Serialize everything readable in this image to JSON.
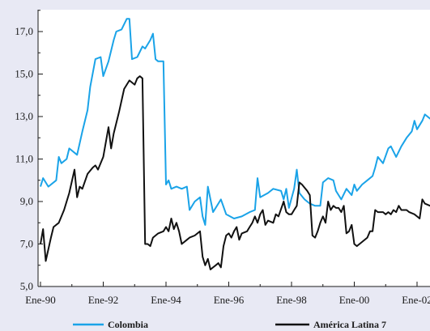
{
  "chart_data": {
    "type": "line",
    "title": "",
    "xlabel": "",
    "ylabel": "",
    "ylim": [
      5.0,
      18.5
    ],
    "xlim": [
      "1990-01",
      "2002-10"
    ],
    "y_ticks": [
      "5,0",
      "7,0",
      "9,0",
      "11,0",
      "13,0",
      "15,0",
      "17,0"
    ],
    "x_ticks": [
      "Ene-90",
      "Ene-92",
      "Ene-94",
      "Ene-96",
      "Ene-98",
      "Ene-00",
      "Ene-02"
    ],
    "grid": false,
    "legend_position": "bottom",
    "colors": {
      "background": "#e8e9f4",
      "plot_background": "#ffffff",
      "axis": "#1a1a1a"
    },
    "series": [
      {
        "name": "Colombia",
        "color": "#1aa3e8",
        "points": [
          [
            "1990-01",
            9.7
          ],
          [
            "1990-02",
            10.1
          ],
          [
            "1990-04",
            9.7
          ],
          [
            "1990-07",
            10.0
          ],
          [
            "1990-08",
            11.1
          ],
          [
            "1990-09",
            10.8
          ],
          [
            "1990-11",
            11.0
          ],
          [
            "1990-12",
            11.5
          ],
          [
            "1991-03",
            11.2
          ],
          [
            "1991-05",
            12.3
          ],
          [
            "1991-07",
            13.3
          ],
          [
            "1991-08",
            14.4
          ],
          [
            "1991-10",
            15.7
          ],
          [
            "1991-12",
            15.8
          ],
          [
            "1992-01",
            14.9
          ],
          [
            "1992-03",
            15.6
          ],
          [
            "1992-05",
            16.6
          ],
          [
            "1992-06",
            17.0
          ],
          [
            "1992-08",
            17.1
          ],
          [
            "1992-10",
            17.6
          ],
          [
            "1992-11",
            17.6
          ],
          [
            "1992-12",
            15.7
          ],
          [
            "1993-02",
            15.8
          ],
          [
            "1993-04",
            16.3
          ],
          [
            "1993-05",
            16.2
          ],
          [
            "1993-07",
            16.6
          ],
          [
            "1993-08",
            16.9
          ],
          [
            "1993-09",
            15.7
          ],
          [
            "1993-10",
            15.6
          ],
          [
            "1993-11",
            15.6
          ],
          [
            "1993-12",
            15.6
          ],
          [
            "1994-01",
            9.8
          ],
          [
            "1994-02",
            10.0
          ],
          [
            "1994-03",
            9.6
          ],
          [
            "1994-05",
            9.7
          ],
          [
            "1994-07",
            9.6
          ],
          [
            "1994-09",
            9.7
          ],
          [
            "1994-10",
            8.6
          ],
          [
            "1994-12",
            9.0
          ],
          [
            "1995-02",
            9.2
          ],
          [
            "1995-03",
            8.3
          ],
          [
            "1995-04",
            7.9
          ],
          [
            "1995-05",
            9.7
          ],
          [
            "1995-07",
            8.5
          ],
          [
            "1995-09",
            8.9
          ],
          [
            "1995-10",
            9.1
          ],
          [
            "1995-12",
            8.4
          ],
          [
            "1996-03",
            8.2
          ],
          [
            "1996-06",
            8.3
          ],
          [
            "1996-09",
            8.5
          ],
          [
            "1996-11",
            8.6
          ],
          [
            "1996-12",
            10.1
          ],
          [
            "1997-01",
            9.2
          ],
          [
            "1997-04",
            9.4
          ],
          [
            "1997-06",
            9.6
          ],
          [
            "1997-09",
            9.5
          ],
          [
            "1997-10",
            9.1
          ],
          [
            "1997-11",
            9.6
          ],
          [
            "1997-12",
            8.7
          ],
          [
            "1998-02",
            9.6
          ],
          [
            "1998-03",
            10.5
          ],
          [
            "1998-04",
            9.4
          ],
          [
            "1998-06",
            9.1
          ],
          [
            "1998-08",
            8.9
          ],
          [
            "1998-10",
            8.8
          ],
          [
            "1998-12",
            8.8
          ],
          [
            "1999-01",
            9.9
          ],
          [
            "1999-03",
            10.1
          ],
          [
            "1999-05",
            10.0
          ],
          [
            "1999-06",
            9.5
          ],
          [
            "1999-08",
            9.1
          ],
          [
            "1999-10",
            9.6
          ],
          [
            "1999-12",
            9.3
          ],
          [
            "2000-01",
            9.8
          ],
          [
            "2000-02",
            9.5
          ],
          [
            "2000-04",
            9.8
          ],
          [
            "2000-06",
            10.0
          ],
          [
            "2000-08",
            10.2
          ],
          [
            "2000-09",
            10.6
          ],
          [
            "2000-10",
            11.1
          ],
          [
            "2000-12",
            10.8
          ],
          [
            "2001-02",
            11.5
          ],
          [
            "2001-03",
            11.6
          ],
          [
            "2001-05",
            11.1
          ],
          [
            "2001-07",
            11.6
          ],
          [
            "2001-09",
            12.0
          ],
          [
            "2001-11",
            12.3
          ],
          [
            "2001-12",
            12.8
          ],
          [
            "2002-01",
            12.4
          ],
          [
            "2002-03",
            12.8
          ],
          [
            "2002-04",
            13.1
          ],
          [
            "2002-06",
            12.9
          ],
          [
            "2002-10",
            13.0
          ]
        ]
      },
      {
        "name": "América Latina 7",
        "color": "#111111",
        "points": [
          [
            "1990-01",
            7.0
          ],
          [
            "1990-02",
            7.7
          ],
          [
            "1990-03",
            6.2
          ],
          [
            "1990-05",
            7.3
          ],
          [
            "1990-06",
            7.8
          ],
          [
            "1990-08",
            8.0
          ],
          [
            "1990-10",
            8.6
          ],
          [
            "1990-12",
            9.4
          ],
          [
            "1991-02",
            10.5
          ],
          [
            "1991-03",
            9.2
          ],
          [
            "1991-04",
            9.7
          ],
          [
            "1991-05",
            9.6
          ],
          [
            "1991-07",
            10.3
          ],
          [
            "1991-09",
            10.6
          ],
          [
            "1991-10",
            10.7
          ],
          [
            "1991-11",
            10.5
          ],
          [
            "1992-01",
            11.1
          ],
          [
            "1992-03",
            12.5
          ],
          [
            "1992-04",
            11.5
          ],
          [
            "1992-05",
            12.2
          ],
          [
            "1992-07",
            13.2
          ],
          [
            "1992-09",
            14.3
          ],
          [
            "1992-11",
            14.7
          ],
          [
            "1993-01",
            14.5
          ],
          [
            "1993-02",
            14.8
          ],
          [
            "1993-03",
            14.9
          ],
          [
            "1993-04",
            14.8
          ],
          [
            "1993-05",
            7.0
          ],
          [
            "1993-06",
            7.0
          ],
          [
            "1993-07",
            6.9
          ],
          [
            "1993-08",
            7.3
          ],
          [
            "1993-10",
            7.5
          ],
          [
            "1993-12",
            7.6
          ],
          [
            "1994-01",
            7.8
          ],
          [
            "1994-02",
            7.6
          ],
          [
            "1994-03",
            8.2
          ],
          [
            "1994-04",
            7.7
          ],
          [
            "1994-05",
            8.0
          ],
          [
            "1994-06",
            7.6
          ],
          [
            "1994-07",
            7.0
          ],
          [
            "1994-09",
            7.2
          ],
          [
            "1994-10",
            7.3
          ],
          [
            "1994-12",
            7.4
          ],
          [
            "1995-02",
            7.6
          ],
          [
            "1995-03",
            6.4
          ],
          [
            "1995-04",
            6.0
          ],
          [
            "1995-05",
            6.3
          ],
          [
            "1995-06",
            5.8
          ],
          [
            "1995-07",
            5.9
          ],
          [
            "1995-08",
            6.0
          ],
          [
            "1995-09",
            6.1
          ],
          [
            "1995-10",
            5.9
          ],
          [
            "1995-11",
            6.9
          ],
          [
            "1995-12",
            7.4
          ],
          [
            "1996-01",
            7.5
          ],
          [
            "1996-02",
            7.3
          ],
          [
            "1996-03",
            7.6
          ],
          [
            "1996-04",
            7.8
          ],
          [
            "1996-05",
            7.2
          ],
          [
            "1996-06",
            7.5
          ],
          [
            "1996-08",
            7.6
          ],
          [
            "1996-09",
            7.8
          ],
          [
            "1996-10",
            8.0
          ],
          [
            "1996-11",
            8.3
          ],
          [
            "1996-12",
            8.0
          ],
          [
            "1997-01",
            8.4
          ],
          [
            "1997-02",
            8.6
          ],
          [
            "1997-03",
            7.9
          ],
          [
            "1997-04",
            8.1
          ],
          [
            "1997-06",
            8.0
          ],
          [
            "1997-07",
            8.4
          ],
          [
            "1997-08",
            8.3
          ],
          [
            "1997-10",
            9.0
          ],
          [
            "1997-11",
            8.5
          ],
          [
            "1997-12",
            8.4
          ],
          [
            "1998-01",
            8.4
          ],
          [
            "1998-02",
            8.6
          ],
          [
            "1998-03",
            8.8
          ],
          [
            "1998-04",
            9.9
          ],
          [
            "1998-05",
            9.8
          ],
          [
            "1998-07",
            9.5
          ],
          [
            "1998-08",
            9.3
          ],
          [
            "1998-09",
            7.4
          ],
          [
            "1998-10",
            7.3
          ],
          [
            "1998-11",
            7.6
          ],
          [
            "1998-12",
            8.0
          ],
          [
            "1999-01",
            8.3
          ],
          [
            "1999-02",
            8.0
          ],
          [
            "1999-03",
            9.0
          ],
          [
            "1999-04",
            8.6
          ],
          [
            "1999-05",
            8.8
          ],
          [
            "1999-06",
            8.7
          ],
          [
            "1999-07",
            8.7
          ],
          [
            "1999-08",
            8.5
          ],
          [
            "1999-09",
            8.8
          ],
          [
            "1999-10",
            7.5
          ],
          [
            "1999-11",
            7.6
          ],
          [
            "1999-12",
            7.9
          ],
          [
            "2000-01",
            7.0
          ],
          [
            "2000-02",
            6.9
          ],
          [
            "2000-04",
            7.1
          ],
          [
            "2000-06",
            7.3
          ],
          [
            "2000-07",
            7.6
          ],
          [
            "2000-08",
            7.6
          ],
          [
            "2000-09",
            8.6
          ],
          [
            "2000-10",
            8.5
          ],
          [
            "2000-12",
            8.5
          ],
          [
            "2001-01",
            8.4
          ],
          [
            "2001-02",
            8.5
          ],
          [
            "2001-03",
            8.4
          ],
          [
            "2001-04",
            8.6
          ],
          [
            "2001-05",
            8.5
          ],
          [
            "2001-06",
            8.8
          ],
          [
            "2001-07",
            8.6
          ],
          [
            "2001-09",
            8.6
          ],
          [
            "2001-10",
            8.5
          ],
          [
            "2001-12",
            8.4
          ],
          [
            "2002-01",
            8.3
          ],
          [
            "2002-02",
            8.2
          ],
          [
            "2002-03",
            9.1
          ],
          [
            "2002-04",
            8.9
          ],
          [
            "2002-06",
            8.8
          ],
          [
            "2002-10",
            8.8
          ]
        ]
      }
    ]
  }
}
